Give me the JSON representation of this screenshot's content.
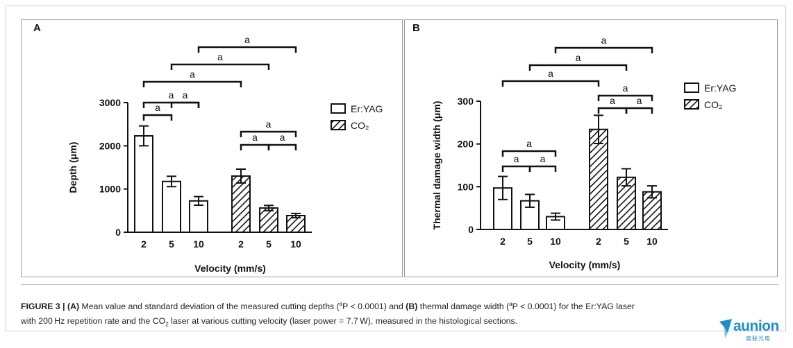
{
  "chart_data": [
    {
      "type": "bar",
      "panel_label": "A",
      "ylabel": "Depth (μm)",
      "xlabel": "Velocity (mm/s)",
      "ylim": [
        0,
        3000
      ],
      "yticks": [
        "0",
        "1000",
        "2000",
        "3000"
      ],
      "groups": [
        {
          "name": "Er:YAG",
          "pattern": "open",
          "categories": [
            "2",
            "5",
            "10"
          ],
          "values": [
            2230,
            1175,
            725
          ],
          "errors": [
            230,
            120,
            100
          ]
        },
        {
          "name": "CO₂",
          "pattern": "hatched",
          "categories": [
            "2",
            "5",
            "10"
          ],
          "values": [
            1300,
            560,
            385
          ],
          "errors": [
            160,
            60,
            50
          ]
        }
      ],
      "significance": [
        {
          "from": [
            0,
            0
          ],
          "to": [
            0,
            1
          ],
          "label": "a"
        },
        {
          "from": [
            0,
            1
          ],
          "to": [
            0,
            2
          ],
          "label": "a"
        },
        {
          "from": [
            0,
            0
          ],
          "to": [
            0,
            2
          ],
          "label": "a"
        },
        {
          "from": [
            0,
            0
          ],
          "to": [
            1,
            0
          ],
          "label": "a"
        },
        {
          "from": [
            0,
            1
          ],
          "to": [
            1,
            1
          ],
          "label": "a"
        },
        {
          "from": [
            0,
            2
          ],
          "to": [
            1,
            2
          ],
          "label": "a"
        },
        {
          "from": [
            1,
            0
          ],
          "to": [
            1,
            1
          ],
          "label": "a"
        },
        {
          "from": [
            1,
            1
          ],
          "to": [
            1,
            2
          ],
          "label": "a"
        },
        {
          "from": [
            1,
            0
          ],
          "to": [
            1,
            2
          ],
          "label": "a"
        }
      ]
    },
    {
      "type": "bar",
      "panel_label": "B",
      "ylabel": "Thermal damage width (μm)",
      "xlabel": "Velocity (mm/s)",
      "ylim": [
        0,
        300
      ],
      "yticks": [
        "0",
        "100",
        "200",
        "300"
      ],
      "groups": [
        {
          "name": "Er:YAG",
          "pattern": "open",
          "categories": [
            "2",
            "5",
            "10"
          ],
          "values": [
            97,
            67,
            30
          ],
          "errors": [
            27,
            15,
            8
          ]
        },
        {
          "name": "CO₂",
          "pattern": "hatched",
          "categories": [
            "2",
            "5",
            "10"
          ],
          "values": [
            234,
            122,
            88
          ],
          "errors": [
            33,
            20,
            14
          ]
        }
      ],
      "significance": [
        {
          "from": [
            0,
            0
          ],
          "to": [
            0,
            1
          ],
          "label": "a"
        },
        {
          "from": [
            0,
            1
          ],
          "to": [
            0,
            2
          ],
          "label": "a"
        },
        {
          "from": [
            0,
            0
          ],
          "to": [
            0,
            2
          ],
          "label": "a"
        },
        {
          "from": [
            1,
            0
          ],
          "to": [
            1,
            1
          ],
          "label": "a"
        },
        {
          "from": [
            1,
            1
          ],
          "to": [
            1,
            2
          ],
          "label": "a"
        },
        {
          "from": [
            1,
            0
          ],
          "to": [
            1,
            2
          ],
          "label": "a"
        },
        {
          "from": [
            0,
            0
          ],
          "to": [
            1,
            0
          ],
          "label": "a"
        },
        {
          "from": [
            0,
            1
          ],
          "to": [
            1,
            1
          ],
          "label": "a"
        },
        {
          "from": [
            0,
            2
          ],
          "to": [
            1,
            2
          ],
          "label": "a"
        }
      ]
    }
  ],
  "caption": {
    "figure_label": "FIGURE 3 |",
    "part_a_label": "(A)",
    "text_1": " Mean value and standard deviation of the measured cutting depths (",
    "sup_1": "a",
    "p_1": "P < 0.0001) and ",
    "part_b_label": "(B)",
    "text_2": " thermal damage width (",
    "sup_2": "a",
    "p_2": "P < 0.0001) for the Er:YAG laser",
    "text_3": "with 200 Hz repetition rate and the CO",
    "sub_1": "2",
    "text_4": " laser at various cutting velocity (laser power = 7.7 W), measured in the histological sections."
  },
  "logo": {
    "text": "aunion",
    "subtext": "奥联光电",
    "color": "#1e8fc9"
  }
}
